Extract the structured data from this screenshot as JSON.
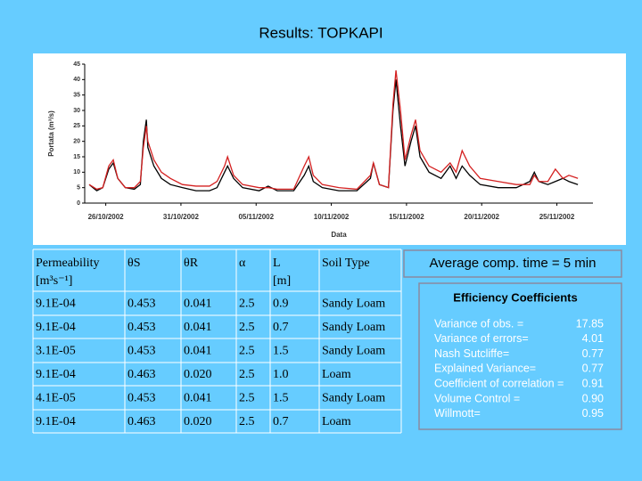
{
  "title": "Results: TOPKAPI",
  "chart_data": {
    "type": "line",
    "ylabel": "Portata (m³/s)",
    "xlabel": "Data",
    "x": [
      -1.1,
      -0.6,
      -0.2,
      0.2,
      0.5,
      0.8,
      1.3,
      1.9,
      2.3,
      2.5,
      2.7,
      2.8,
      3.2,
      3.7,
      4.3,
      5.1,
      6.0,
      6.9,
      7.4,
      7.9,
      8.1,
      8.5,
      9.1,
      10.2,
      10.8,
      11.4,
      12.5,
      13.2,
      13.5,
      13.8,
      14.4,
      15.5,
      16.7,
      17.6,
      17.8,
      18.2,
      18.8,
      19.1,
      19.3,
      19.6,
      19.9,
      20.3,
      20.6,
      20.9,
      21.5,
      22.3,
      22.9,
      23.3,
      23.7,
      24.2,
      24.9,
      26.1,
      27.3,
      28.2,
      28.5,
      28.8,
      29.4,
      29.9,
      30.4,
      30.8,
      31.4
    ],
    "series": [
      {
        "color": "#000000",
        "values": [
          6,
          4,
          5,
          11,
          13,
          8,
          5,
          4.5,
          6,
          20,
          27,
          18,
          12,
          8,
          6,
          5,
          4,
          4,
          5,
          10,
          12,
          8,
          5,
          4,
          5.5,
          4,
          4,
          9,
          12,
          7,
          5,
          4,
          4,
          8,
          13,
          6,
          5,
          30,
          40,
          25,
          12,
          20,
          25,
          15,
          10,
          8,
          12,
          8,
          12,
          9,
          6,
          5,
          5,
          7,
          10,
          7,
          6,
          7,
          8,
          7,
          6
        ]
      },
      {
        "color": "#d42020",
        "values": [
          6,
          4.5,
          5,
          12,
          14,
          8,
          5,
          5,
          7,
          18,
          25,
          20,
          14,
          10,
          8,
          6,
          5.5,
          5.5,
          7,
          12,
          15,
          9,
          6,
          5,
          5,
          4.5,
          4.5,
          12,
          15,
          9,
          6,
          5,
          4.5,
          9,
          13,
          6,
          5,
          32,
          43,
          30,
          14,
          22,
          27,
          17,
          12,
          10,
          13,
          10,
          17,
          12,
          8,
          7,
          6,
          6,
          9,
          7,
          7,
          11,
          8,
          9,
          8
        ]
      }
    ],
    "xlim": [
      -1.4,
      32.4
    ],
    "ylim": [
      0,
      45
    ],
    "yticks": [
      0,
      5,
      10,
      15,
      20,
      25,
      30,
      35,
      40,
      45
    ],
    "xticks": [
      {
        "value": 0,
        "label": "26/10/2002"
      },
      {
        "value": 5,
        "label": "31/10/2002"
      },
      {
        "value": 10,
        "label": "05/11/2002"
      },
      {
        "value": 15,
        "label": "10/11/2002"
      },
      {
        "value": 20,
        "label": "15/11/2002"
      },
      {
        "value": 25,
        "label": "20/11/2002"
      },
      {
        "value": 30,
        "label": "25/11/2002"
      }
    ]
  },
  "table": {
    "header": [
      "Permeability [m³s⁻¹]",
      "θS",
      "θR",
      "α",
      "L [m]",
      "Soil Type"
    ],
    "rows": [
      [
        "9.1E-04",
        "0.453",
        "0.041",
        "2.5",
        "0.9",
        "Sandy Loam"
      ],
      [
        "9.1E-04",
        "0.453",
        "0.041",
        "2.5",
        "0.7",
        "Sandy Loam"
      ],
      [
        "3.1E-05",
        "0.453",
        "0.041",
        "2.5",
        "1.5",
        "Sandy Loam"
      ],
      [
        "9.1E-04",
        "0.463",
        "0.020",
        "2.5",
        "1.0",
        "Loam"
      ],
      [
        "4.1E-05",
        "0.453",
        "0.041",
        "2.5",
        "1.5",
        "Sandy Loam"
      ],
      [
        "9.1E-04",
        "0.463",
        "0.020",
        "2.5",
        "0.7",
        "Loam"
      ]
    ]
  },
  "comp_time": "Average comp. time  = 5 min",
  "efficiency": {
    "title": "Efficiency Coefficients",
    "rows": [
      [
        "Variance of obs. =",
        "17.85"
      ],
      [
        "Variance of  errors=",
        "4.01"
      ],
      [
        "Nash Sutcliffe=",
        "0.77"
      ],
      [
        "Explained Variance=",
        "0.77"
      ],
      [
        "Coefficient of correlation =",
        "0.91"
      ],
      [
        "Volume Control =",
        "0.90"
      ],
      [
        "Willmott=",
        "0.95"
      ]
    ]
  }
}
